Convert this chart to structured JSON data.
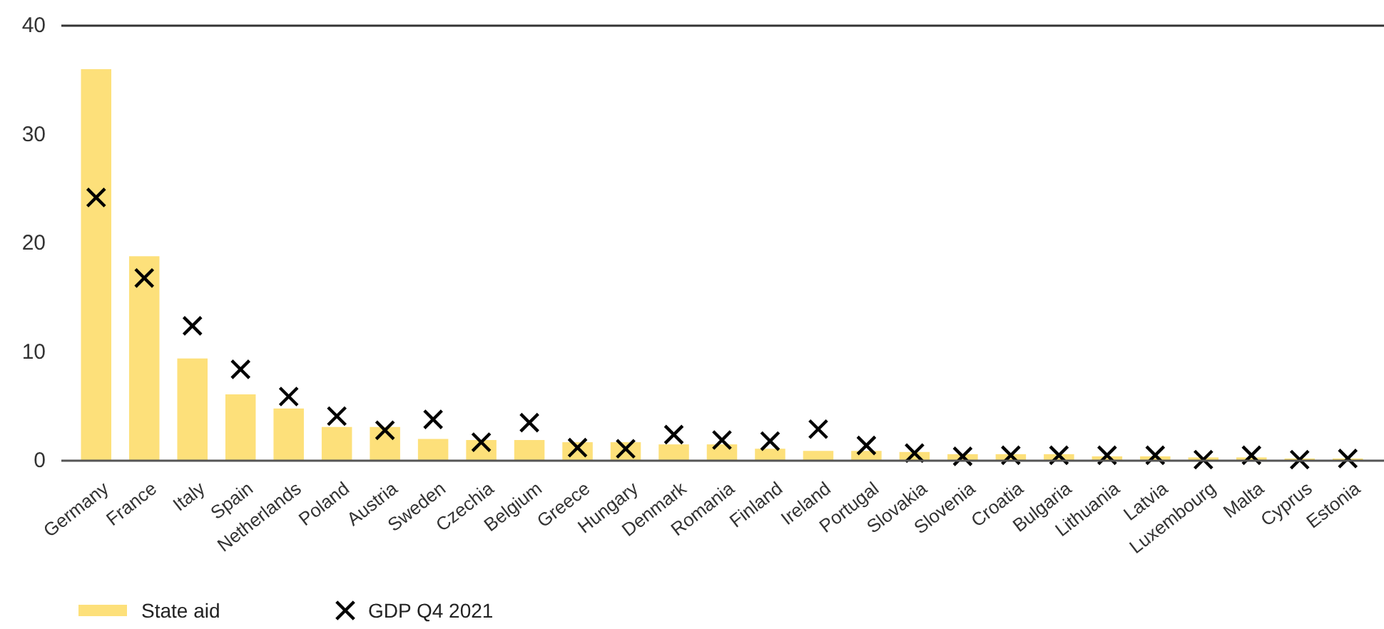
{
  "chart_data": {
    "type": "bar",
    "categories": [
      "Germany",
      "France",
      "Italy",
      "Spain",
      "Netherlands",
      "Poland",
      "Austria",
      "Sweden",
      "Czechia",
      "Belgium",
      "Greece",
      "Hungary",
      "Denmark",
      "Romania",
      "Finland",
      "Ireland",
      "Portugal",
      "Slovakia",
      "Slovenia",
      "Croatia",
      "Bulgaria",
      "Lithuania",
      "Latvia",
      "Luxembourg",
      "Malta",
      "Cyprus",
      "Estonia"
    ],
    "series": [
      {
        "name": "State aid",
        "type": "bar",
        "color": "#fde07a",
        "values": [
          36.0,
          18.8,
          9.4,
          6.1,
          4.8,
          3.1,
          3.1,
          2.0,
          1.9,
          1.9,
          1.7,
          1.7,
          1.5,
          1.5,
          1.1,
          0.9,
          0.9,
          0.8,
          0.6,
          0.6,
          0.6,
          0.4,
          0.4,
          0.3,
          0.3,
          0.2,
          0.2
        ]
      },
      {
        "name": "GDP Q4 2021",
        "type": "scatter",
        "marker": "cross",
        "color": "#000000",
        "x": [
          "Germany",
          "France",
          "Italy",
          "Spain",
          "Netherlands",
          "Poland",
          "Austria",
          "Sweden",
          "Czechia",
          "Belgium",
          "Greece",
          "Hungary",
          "Denmark",
          "Romania",
          "Finland",
          "Ireland",
          "Portugal",
          "Slovakia",
          "Slovenia",
          "Croatia",
          "Bulgaria",
          "Lithuania",
          "Latvia",
          "Luxembourg",
          "Malta",
          "Cyprus",
          "Estonia"
        ],
        "values": [
          24.2,
          16.8,
          12.4,
          8.4,
          5.9,
          4.1,
          2.8,
          3.8,
          1.7,
          3.5,
          1.2,
          1.1,
          2.4,
          1.9,
          1.8,
          2.9,
          1.4,
          0.7,
          0.4,
          0.5,
          0.5,
          0.5,
          0.5,
          0.1,
          0.5,
          0.1,
          0.2
        ]
      }
    ],
    "ylim": [
      0,
      40
    ],
    "yticks": [
      0,
      10,
      20,
      30,
      40
    ],
    "grid": false,
    "legend": "bottom left"
  }
}
